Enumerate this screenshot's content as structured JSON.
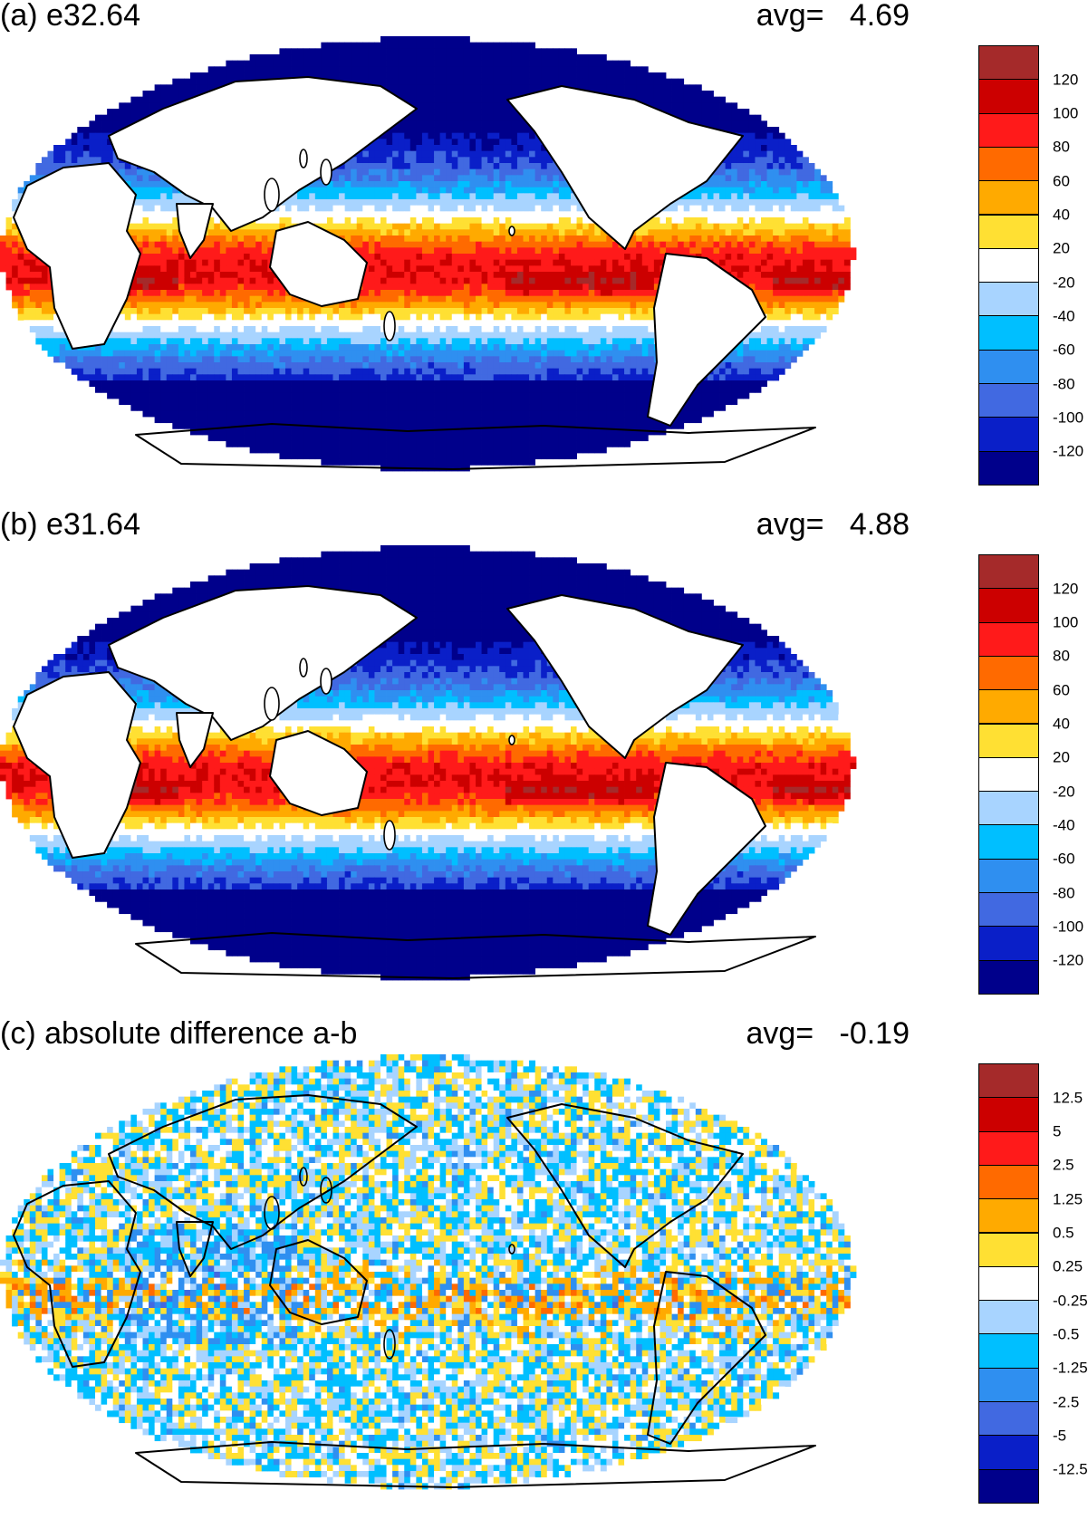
{
  "panels": [
    {
      "id": "a",
      "title": "(a) e32.64",
      "avg_label": "avg=",
      "avg_value": "4.69",
      "colorbar": {
        "colors": [
          "#a52a2a",
          "#cc0000",
          "#ff1a1a",
          "#ff6a00",
          "#ffaa00",
          "#ffe033",
          "#ffffff",
          "#a8d4ff",
          "#00bfff",
          "#2f8ff0",
          "#4169e1",
          "#0a1fc8",
          "#00008b"
        ],
        "labels": [
          "120",
          "100",
          "80",
          "60",
          "40",
          "20",
          "-20",
          "-40",
          "-60",
          "-80",
          "-100",
          "-120"
        ]
      }
    },
    {
      "id": "b",
      "title": "(b) e31.64",
      "avg_label": "avg=",
      "avg_value": "4.88",
      "colorbar": {
        "colors": [
          "#a52a2a",
          "#cc0000",
          "#ff1a1a",
          "#ff6a00",
          "#ffaa00",
          "#ffe033",
          "#ffffff",
          "#a8d4ff",
          "#00bfff",
          "#2f8ff0",
          "#4169e1",
          "#0a1fc8",
          "#00008b"
        ],
        "labels": [
          "120",
          "100",
          "80",
          "60",
          "40",
          "20",
          "-20",
          "-40",
          "-60",
          "-80",
          "-100",
          "-120"
        ]
      }
    },
    {
      "id": "c",
      "title": "(c) absolute difference a-b",
      "avg_label": "avg=",
      "avg_value": "-0.19",
      "colorbar": {
        "colors": [
          "#a52a2a",
          "#cc0000",
          "#ff1a1a",
          "#ff6a00",
          "#ffaa00",
          "#ffe033",
          "#ffffff",
          "#a8d4ff",
          "#00bfff",
          "#2f8ff0",
          "#4169e1",
          "#0a1fc8",
          "#00008b"
        ],
        "labels": [
          "12.5",
          "5",
          "2.5",
          "1.25",
          "0.5",
          "0.25",
          "-0.25",
          "-0.5",
          "-1.25",
          "-2.5",
          "-5",
          "-12.5"
        ]
      }
    }
  ]
}
